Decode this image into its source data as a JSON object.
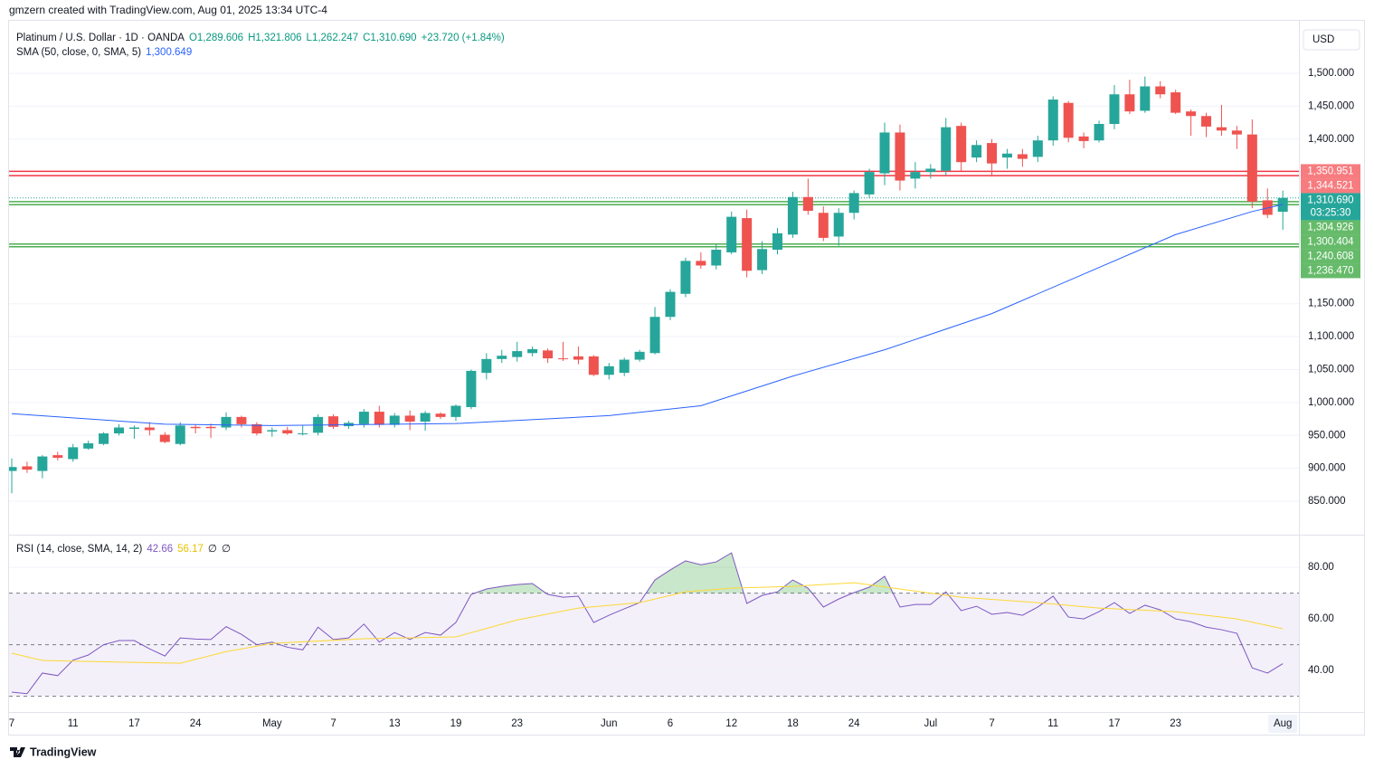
{
  "header": "gmzern created with TradingView.com, Aug 01, 2025 13:34 UTC-4",
  "footer_logo": "TradingView",
  "chart_data": [
    {
      "type": "candlestick",
      "title": "Platinum / U.S. Dollar · 1D · OANDA",
      "legend_values": [
        "O1,289.606",
        "H1,321.806",
        "L1,262.247",
        "C1,310.690",
        "+23.720 (+1.84%)"
      ],
      "legend_color": "#089981",
      "currency": "USD",
      "categories": [
        "7",
        null,
        null,
        null,
        "11",
        null,
        null,
        null,
        "17",
        null,
        null,
        null,
        "24",
        null,
        null,
        null,
        null,
        "May",
        null,
        null,
        null,
        "7",
        null,
        null,
        null,
        "13",
        null,
        null,
        null,
        "19",
        null,
        null,
        null,
        "23",
        null,
        null,
        null,
        null,
        null,
        "Jun",
        null,
        null,
        null,
        "6",
        null,
        null,
        null,
        "12",
        null,
        null,
        null,
        "18",
        null,
        null,
        null,
        "24",
        null,
        null,
        null,
        null,
        "Jul",
        null,
        null,
        null,
        "7",
        null,
        null,
        null,
        "11",
        null,
        null,
        null,
        "17",
        null,
        null,
        null,
        "23",
        null,
        null,
        null,
        null,
        null,
        null,
        "Aug"
      ],
      "open": [
        896,
        903,
        896,
        920,
        914,
        930,
        937,
        953,
        960,
        962,
        951,
        937,
        963,
        963,
        962,
        978,
        967,
        956,
        958,
        952,
        954,
        979,
        964,
        967,
        986,
        966,
        980,
        971,
        983,
        978,
        993,
        1045,
        1066,
        1069,
        1075,
        1079,
        1067,
        1070,
        1070,
        1042,
        1045,
        1065,
        1075,
        1130,
        1165,
        1215,
        1208,
        1228,
        1280,
        1201,
        1232,
        1255,
        1312,
        1288,
        1252,
        1288,
        1316,
        1348,
        1410,
        1340,
        1350,
        1352,
        1420,
        1372,
        1394,
        1372,
        1377,
        1373,
        1398,
        1455,
        1404,
        1398,
        1423,
        1468,
        1443,
        1480,
        1471,
        1442,
        1435,
        1418,
        1413,
        1407,
        1307,
        1289.606
      ],
      "high": [
        915,
        910,
        920,
        925,
        937,
        942,
        955,
        967,
        965,
        970,
        955,
        970,
        967,
        968,
        985,
        980,
        970,
        962,
        963,
        965,
        982,
        982,
        972,
        990,
        995,
        984,
        988,
        987,
        985,
        997,
        1050,
        1075,
        1080,
        1092,
        1085,
        1082,
        1092,
        1085,
        1072,
        1060,
        1068,
        1080,
        1145,
        1172,
        1220,
        1228,
        1240,
        1290,
        1293,
        1245,
        1265,
        1320,
        1340,
        1298,
        1295,
        1322,
        1355,
        1425,
        1422,
        1365,
        1362,
        1432,
        1425,
        1398,
        1400,
        1385,
        1385,
        1405,
        1465,
        1458,
        1410,
        1428,
        1482,
        1490,
        1495,
        1488,
        1475,
        1445,
        1440,
        1452,
        1420,
        1430,
        1325,
        1321.806
      ],
      "low": [
        862,
        893,
        885,
        912,
        910,
        928,
        935,
        950,
        945,
        950,
        938,
        935,
        953,
        946,
        958,
        962,
        950,
        948,
        951,
        950,
        950,
        960,
        960,
        962,
        962,
        962,
        958,
        957,
        975,
        972,
        990,
        1035,
        1060,
        1062,
        1070,
        1060,
        1063,
        1058,
        1040,
        1035,
        1040,
        1062,
        1073,
        1125,
        1160,
        1203,
        1202,
        1225,
        1190,
        1195,
        1225,
        1250,
        1285,
        1245,
        1238,
        1278,
        1310,
        1330,
        1322,
        1325,
        1340,
        1345,
        1352,
        1365,
        1343,
        1355,
        1358,
        1365,
        1390,
        1395,
        1386,
        1395,
        1415,
        1438,
        1440,
        1462,
        1438,
        1405,
        1403,
        1405,
        1385,
        1295,
        1280,
        1262.247
      ],
      "close": [
        902,
        898,
        918,
        916,
        932,
        938,
        953,
        962,
        962,
        958,
        940,
        965,
        961,
        961,
        978,
        967,
        953,
        958,
        953,
        953,
        978,
        963,
        969,
        986,
        966,
        980,
        971,
        984,
        978,
        995,
        1048,
        1066,
        1071,
        1078,
        1081,
        1067,
        1066,
        1065,
        1042,
        1055,
        1065,
        1077,
        1130,
        1168,
        1215,
        1208,
        1232,
        1282,
        1200,
        1233,
        1257,
        1312,
        1291,
        1250,
        1288,
        1318,
        1350,
        1410,
        1337,
        1350,
        1355,
        1418,
        1365,
        1391,
        1363,
        1378,
        1370,
        1398,
        1460,
        1402,
        1397,
        1423,
        1468,
        1442,
        1480,
        1468,
        1440,
        1435,
        1419,
        1413,
        1407,
        1305,
        1285,
        1310.69
      ],
      "up_color": "#26a69a",
      "down_color": "#ef5350",
      "ylim": [
        800.6,
        1581
      ],
      "yticks": [
        {
          "value": 850,
          "label": "850.000"
        },
        {
          "value": 900,
          "label": "900.000"
        },
        {
          "value": 950,
          "label": "950.000"
        },
        {
          "value": 1000,
          "label": "1,000.000"
        },
        {
          "value": 1050,
          "label": "1,050.000"
        },
        {
          "value": 1100,
          "label": "1,100.000"
        },
        {
          "value": 1150,
          "label": "1,150.000"
        },
        {
          "value": 1400,
          "label": "1,400.000"
        },
        {
          "value": 1450,
          "label": "1,450.000"
        },
        {
          "value": 1500,
          "label": "1,500.000"
        }
      ],
      "grid": true,
      "overlays": [
        {
          "name": "SMA (50, close, 0, SMA, 5)",
          "value_label": "1,300.649",
          "color": "#2962ff",
          "x": [
            0,
            10,
            17,
            29,
            39,
            45,
            51,
            57,
            64,
            70,
            76,
            81,
            83
          ],
          "values": [
            983,
            967,
            965,
            968,
            980,
            995,
            1040,
            1080,
            1135,
            1195,
            1255,
            1290,
            1300.649
          ]
        }
      ],
      "levels": [
        {
          "value": 1350.951,
          "label": "1,350.951",
          "color": "#f23645",
          "box": "#f77c80"
        },
        {
          "value": 1344.521,
          "label": "1,344.521",
          "color": "#f23645",
          "box": "#f77c80"
        },
        {
          "value": 1310.69,
          "label": "1,310.690",
          "color": "#26a69a",
          "box": "#26a69a",
          "countdown": "03:25:30"
        },
        {
          "value": 1304.926,
          "label": "1,304.926",
          "color": "#4caf50",
          "box": "#66bb6a"
        },
        {
          "value": 1300.404,
          "label": "1,300.404",
          "color": "#4caf50",
          "box": "#66bb6a"
        },
        {
          "value": 1240.608,
          "label": "1,240.608",
          "color": "#4caf50",
          "box": "#66bb6a"
        },
        {
          "value": 1236.47,
          "label": "1,236.470",
          "color": "#4caf50",
          "box": "#66bb6a"
        }
      ]
    },
    {
      "type": "line",
      "title": "RSI (14, close, SMA, 14, 2)",
      "legend_values": [
        "42.66",
        "56.17",
        "∅",
        "∅"
      ],
      "legend_colors": [
        "#7e57c2",
        "#e8c200",
        "#131722",
        "#131722"
      ],
      "series": [
        {
          "color": "#7e57c2",
          "values": [
            31.6,
            31,
            39,
            38,
            44,
            46,
            50,
            51.6,
            51.6,
            48.4,
            45.6,
            52.6,
            52.2,
            52,
            57,
            54,
            50,
            51,
            49,
            48,
            56.8,
            52,
            52.6,
            58,
            51,
            54.7,
            52,
            54.7,
            53.7,
            58.6,
            69.5,
            71.6,
            72.6,
            73.3,
            73.7,
            69.5,
            68.4,
            68.8,
            58.6,
            61.4,
            63.9,
            66.3,
            75.1,
            79,
            82.5,
            81,
            82.1,
            85.6,
            66,
            69.1,
            70.5,
            75.1,
            71.9,
            64.6,
            67.7,
            70.2,
            72.3,
            76.5,
            64.6,
            65.6,
            65.6,
            70.5,
            63.2,
            64.9,
            61.8,
            62.5,
            61.4,
            64.6,
            68.8,
            60.7,
            60,
            62.8,
            66.3,
            62.1,
            65.3,
            63.5,
            60,
            58.9,
            56.8,
            55.8,
            54.4,
            41,
            39,
            42.66
          ]
        },
        {
          "color": "#fdd835",
          "x": [
            0,
            2,
            5,
            11,
            14,
            17,
            23,
            29,
            33,
            37,
            41,
            44,
            47,
            51,
            55,
            58,
            62,
            67,
            71,
            76,
            80,
            83
          ],
          "values": [
            46.7,
            43.9,
            43.5,
            42.8,
            47.3,
            50.5,
            52.3,
            53,
            59.6,
            64.2,
            66.3,
            70.5,
            71.9,
            72.6,
            74,
            71.6,
            68.4,
            66.3,
            64.2,
            62.8,
            60,
            56.17
          ]
        }
      ],
      "ylim": [
        24.6,
        92.3
      ],
      "yticks": [
        {
          "value": 40,
          "label": "40.00"
        },
        {
          "value": 60,
          "label": "60.00"
        },
        {
          "value": 80,
          "label": "80.00"
        }
      ],
      "reference_lines": [
        70,
        50,
        30
      ],
      "band": [
        30,
        70
      ],
      "band_color": "#7e57c2",
      "overbought_color": "#4caf50"
    }
  ]
}
